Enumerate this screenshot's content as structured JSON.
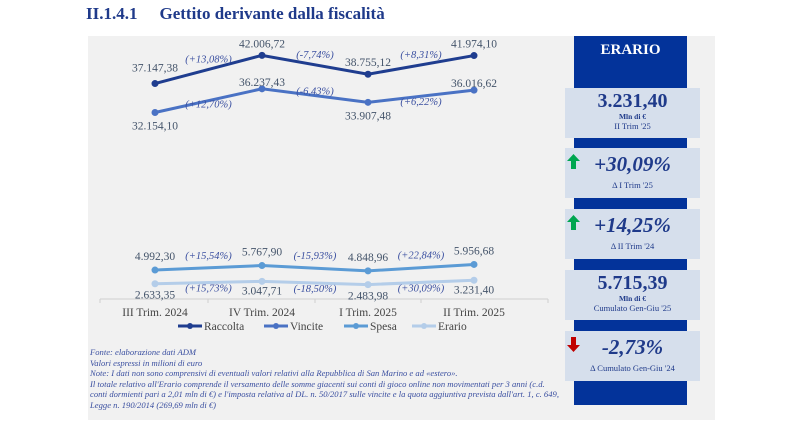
{
  "header": {
    "section": "II.1.4.1",
    "title": "Gettito derivante dalla fiscalità"
  },
  "chart_data": {
    "type": "line",
    "categories": [
      "III Trim. 2024",
      "IV Trim. 2024",
      "I Trim. 2025",
      "II Trim. 2025"
    ],
    "series": [
      {
        "name": "Raccolta",
        "color": "#1f3d8f",
        "labels": [
          "37.147,38",
          "42.006,72",
          "38.755,12",
          "41.974,10"
        ],
        "values": [
          37147.38,
          42006.72,
          38755.12,
          41974.1
        ],
        "changes": [
          "(+13,08%)",
          "(-7,74%)",
          "(+8,31%)"
        ]
      },
      {
        "name": "Vincite",
        "color": "#4a72c4",
        "labels": [
          "32.154,10",
          "36.237,43",
          "33.907,48",
          "36.016,62"
        ],
        "values": [
          32154.1,
          36237.43,
          33907.48,
          36016.62
        ],
        "changes": [
          "(+12,70%)",
          "(-6,43%)",
          "(+6,22%)"
        ]
      },
      {
        "name": "Spesa",
        "color": "#5b9bd5",
        "labels": [
          "4.992,30",
          "5.767,90",
          "4.848,96",
          "5.956,68"
        ],
        "values": [
          4992.3,
          5767.9,
          4848.96,
          5956.68
        ],
        "changes": [
          "(+15,54%)",
          "(-15,93%)",
          "(+22,84%)"
        ]
      },
      {
        "name": "Erario",
        "color": "#b4cde9",
        "labels": [
          "2.633,35",
          "3.047,71",
          "2.483,98",
          "3.231,40"
        ],
        "values": [
          2633.35,
          3047.71,
          2483.98,
          3231.4
        ],
        "changes": [
          "(+15,73%)",
          "(-18,50%)",
          "(+30,09%)"
        ]
      }
    ],
    "unit": "milioni di euro",
    "legend": "bottom"
  },
  "notes": [
    "Fonte: elaborazione dati ADM",
    "Valori espressi in milioni di euro",
    "Note: I dati non sono comprensivi di eventuali valori relativi alla Repubblica di San Marino e ad «estero».",
    "Il totale relativo all'Erario comprende il versamento delle somme giacenti sui conti di gioco online non movimentati per 3 anni (c.d. conti dormienti pari a 2,01 mln di €) e l'imposta relativa al DL. n. 50/2017 sulle vincite e la quota aggiuntiva prevista dall'art. 1, c. 649, Legge n. 190/2014 (269,69 mln di €)"
  ],
  "erario": {
    "title": "ERARIO",
    "cards": [
      {
        "value": "3.231,40",
        "unit": "Mln di €",
        "sub": "II Trim '25"
      },
      {
        "value": "+30,09%",
        "sub": "Δ I Trim '25",
        "trend": "up"
      },
      {
        "value": "+14,25%",
        "sub": "Δ II Trim '24",
        "trend": "up"
      },
      {
        "value": "5.715,39",
        "unit": "Mln di €",
        "sub": "Cumulato Gen-Giu '25"
      },
      {
        "value": "-2,73%",
        "sub": "Δ Cumulato Gen-Giu '24",
        "trend": "down"
      }
    ],
    "up_color": "#00a650",
    "down_color": "#c00000"
  }
}
